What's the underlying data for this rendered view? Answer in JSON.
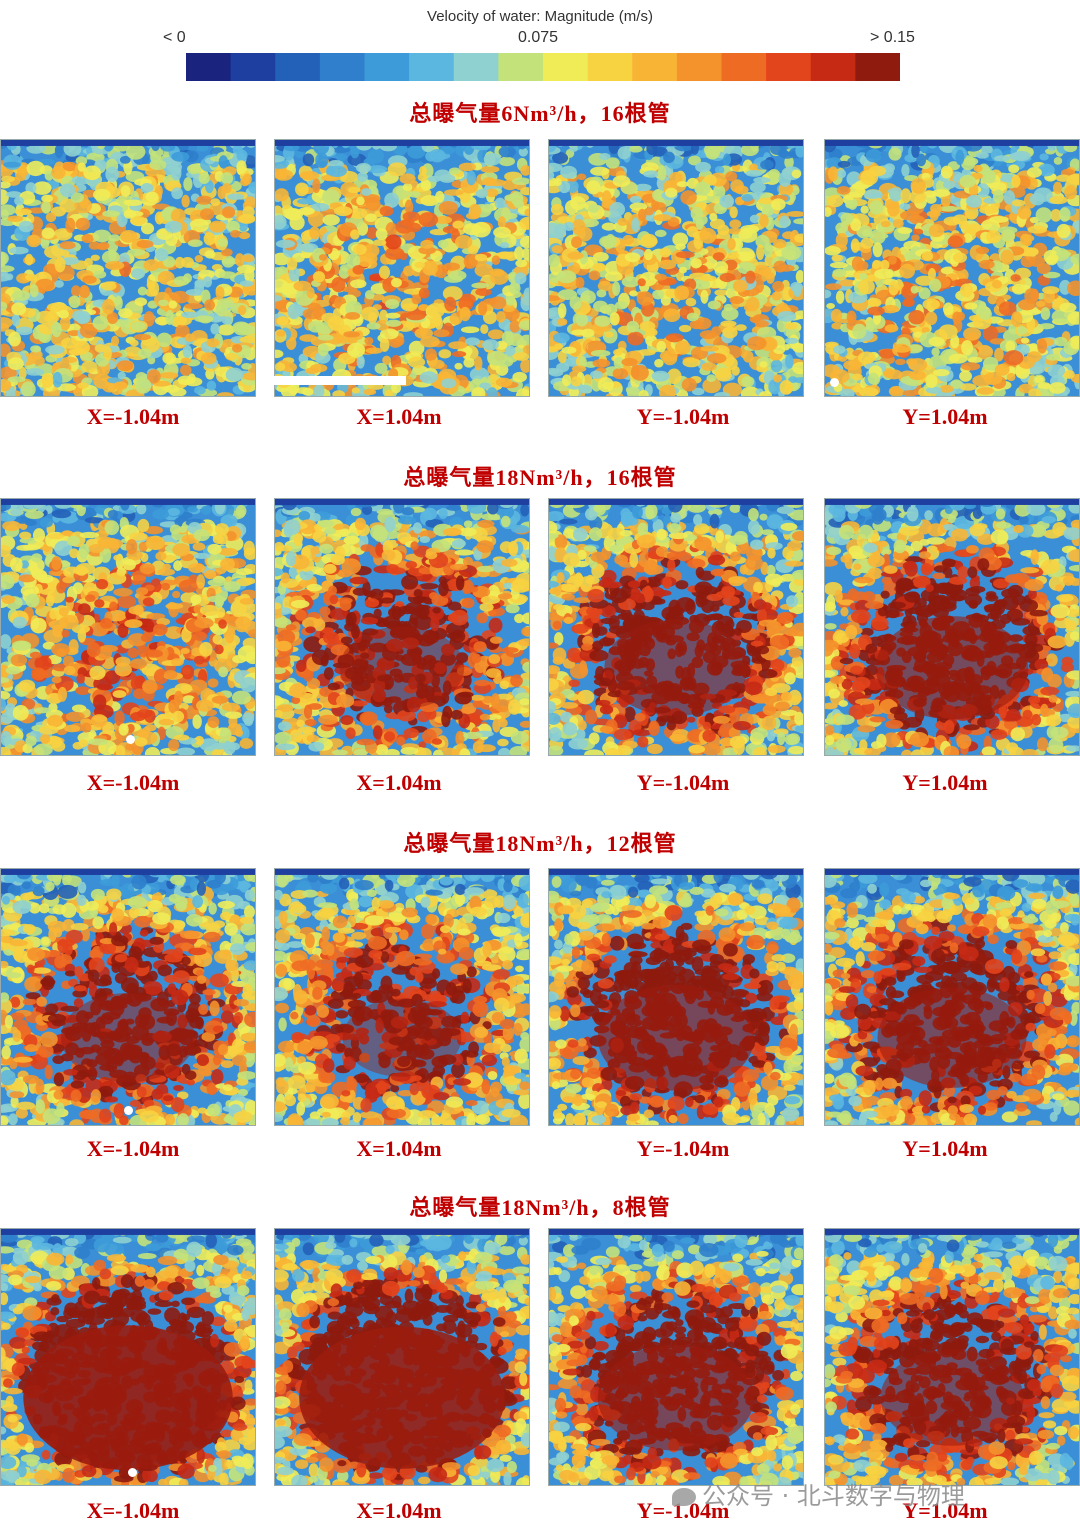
{
  "legend": {
    "title": "Velocity of water: Magnitude (m/s)",
    "min_label": "< 0",
    "mid_label": "0.075",
    "max_label": "> 0.15",
    "colors": [
      "#1a237e",
      "#1e3f9f",
      "#2360b8",
      "#2f7fcc",
      "#3d9bd9",
      "#5cb7e0",
      "#8fd0d0",
      "#c4e27a",
      "#f0ec58",
      "#f7d341",
      "#f8b535",
      "#f4922c",
      "#ee6b23",
      "#e2441c",
      "#c62a15",
      "#8e1b0e"
    ]
  },
  "sections": [
    {
      "title": "总曝气量6Nm³/h，16根管",
      "intensity": [
        0.05,
        0.12,
        0.08,
        0.1
      ]
    },
    {
      "title": "总曝气量18Nm³/h，16根管",
      "intensity": [
        0.22,
        0.45,
        0.55,
        0.6
      ]
    },
    {
      "title": "总曝气量18Nm³/h，12根管",
      "intensity": [
        0.5,
        0.42,
        0.62,
        0.58
      ]
    },
    {
      "title": "总曝气量18Nm³/h，8根管",
      "intensity": [
        0.9,
        0.88,
        0.62,
        0.55
      ]
    }
  ],
  "panel_labels": [
    "X=-1.04m",
    "X=1.04m",
    "Y=-1.04m",
    "Y=1.04m"
  ],
  "watermark": "公众号 · 北斗数字与物理"
}
